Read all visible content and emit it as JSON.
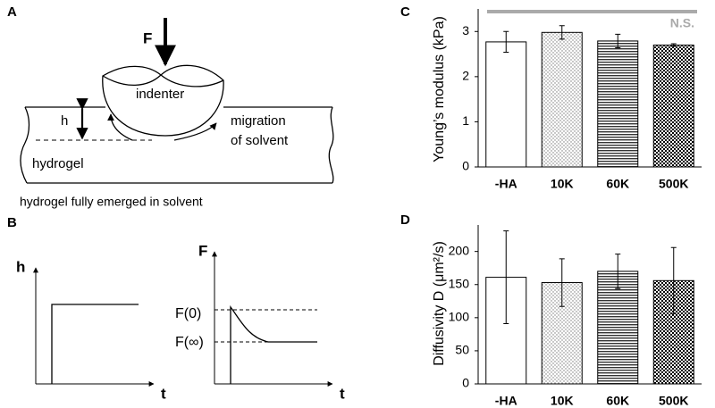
{
  "panels": {
    "a": {
      "letter": "A",
      "force": "F",
      "indenter": "indenter",
      "h": "h",
      "migration_1": "migration",
      "migration_2": "of solvent",
      "hydrogel": "hydrogel",
      "caption": "hydrogel fully emerged in solvent"
    },
    "b": {
      "letter": "B",
      "h": "h",
      "t_1": "t",
      "f": "F",
      "t_2": "t",
      "f0": "F(0)",
      "finf": "F(∞)"
    },
    "c": {
      "letter": "C"
    },
    "d": {
      "letter": "D"
    }
  },
  "chart_data": [
    {
      "type": "bar",
      "y_label": "Young’s modulus (kPa)",
      "categories": [
        "-HA",
        "10K",
        "60K",
        "500K"
      ],
      "values": [
        2.77,
        2.98,
        2.79,
        2.7
      ],
      "errors": [
        0.23,
        0.15,
        0.15,
        0.03
      ],
      "patterns": [
        "none",
        "dots",
        "hlines",
        "checker"
      ],
      "ylim": [
        0,
        3.5
      ],
      "yticks": [
        0,
        1,
        2,
        3
      ],
      "annotation": "N.S."
    },
    {
      "type": "bar",
      "y_label": "Diffusivity D (μm²/s)",
      "categories": [
        "-HA",
        "10K",
        "60K",
        "500K"
      ],
      "values": [
        161,
        153,
        170,
        156
      ],
      "errors": [
        70,
        36,
        26,
        50
      ],
      "patterns": [
        "none",
        "dots",
        "hlines",
        "checker"
      ],
      "ylim": [
        0,
        240
      ],
      "yticks": [
        0,
        50,
        100,
        150,
        200
      ]
    }
  ]
}
